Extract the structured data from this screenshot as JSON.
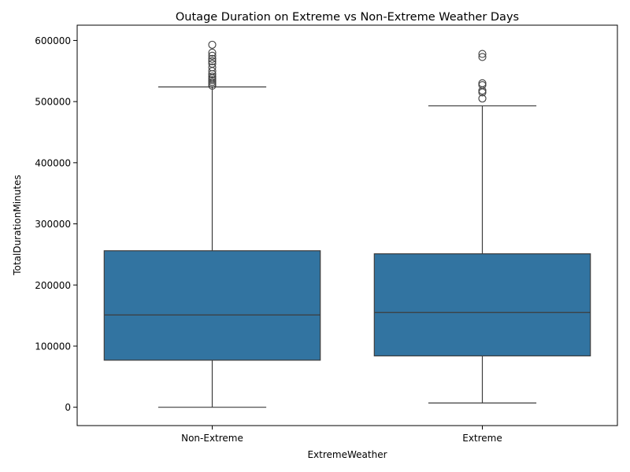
{
  "chart_data": {
    "type": "box",
    "title": "Outage Duration on Extreme vs Non-Extreme Weather Days",
    "xlabel": "ExtremeWeather",
    "ylabel": "TotalDurationMinutes",
    "ylim": [
      -30000,
      625000
    ],
    "yticks": [
      0,
      100000,
      200000,
      300000,
      400000,
      500000,
      600000
    ],
    "ytick_labels": [
      "0",
      "100000",
      "200000",
      "300000",
      "400000",
      "500000",
      "600000"
    ],
    "categories": [
      "Non-Extreme",
      "Extreme"
    ],
    "color": "#3274a1",
    "edge_color": "#3d3d3d",
    "boxes": [
      {
        "category": "Non-Extreme",
        "whisker_low": 0,
        "q1": 77000,
        "median": 151000,
        "q3": 256000,
        "whisker_high": 524000,
        "outliers": [
          526000,
          529000,
          532000,
          535000,
          538000,
          541000,
          545000,
          550000,
          556000,
          562000,
          566000,
          570000,
          575000,
          580000,
          593000
        ]
      },
      {
        "category": "Extreme",
        "whisker_low": 7000,
        "q1": 84000,
        "median": 155000,
        "q3": 251000,
        "whisker_high": 493000,
        "outliers": [
          505000,
          515000,
          518000,
          527000,
          530000,
          573000,
          578000
        ]
      }
    ]
  }
}
